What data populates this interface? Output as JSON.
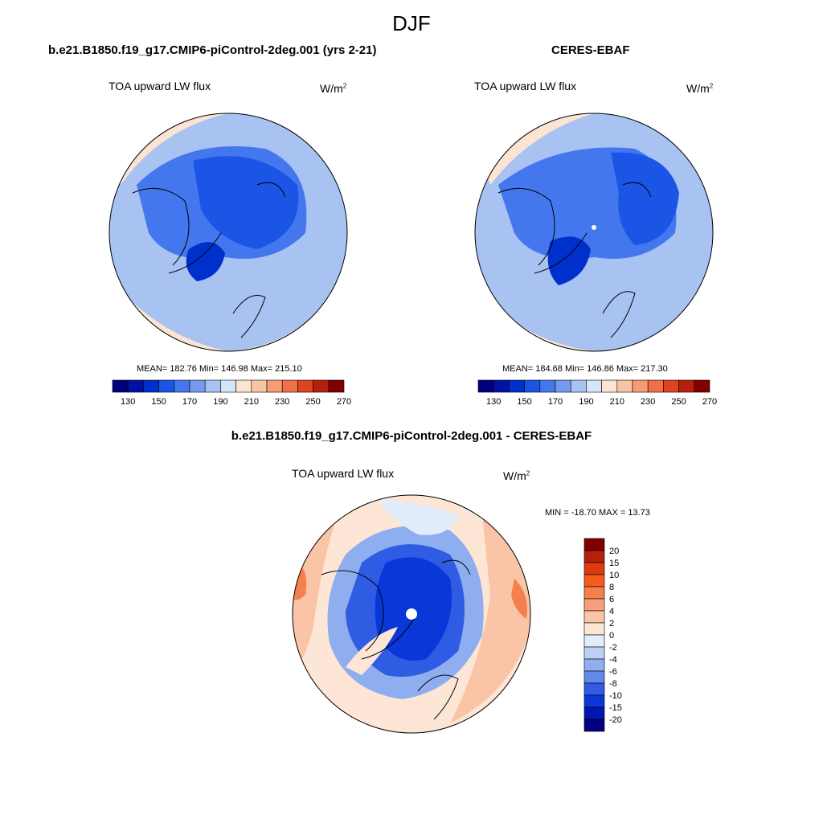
{
  "season": "DJF",
  "panels": {
    "model": {
      "title": "b.e21.B1850.f19_g17.CMIP6-piControl-2deg.001 (yrs 2-21)",
      "variable": "TOA upward LW flux",
      "units_base": "W/m",
      "units_exp": "2",
      "stats": "MEAN= 182.76  Min= 146.98  Max= 215.10"
    },
    "obs": {
      "title": "CERES-EBAF",
      "variable": "TOA upward LW flux",
      "units_base": "W/m",
      "units_exp": "2",
      "stats": "MEAN= 184.68  Min= 146.86  Max= 217.30"
    },
    "diff": {
      "title": "b.e21.B1850.f19_g17.CMIP6-piControl-2deg.001 - CERES-EBAF",
      "variable": "TOA upward LW flux",
      "units_base": "W/m",
      "units_exp": "2",
      "stats": "MIN = -18.70 MAX =  13.73"
    }
  },
  "colorbars": {
    "abs": {
      "colors": [
        "#00007f",
        "#0012a6",
        "#0030cc",
        "#1a55e6",
        "#4477ee",
        "#7599ee",
        "#a8c2f2",
        "#d6e6fa",
        "#fbe4d2",
        "#f9c4a3",
        "#f59c74",
        "#f0704a",
        "#e0441f",
        "#b5200d",
        "#800000"
      ],
      "tick_labels": [
        "130",
        "150",
        "170",
        "190",
        "210",
        "230",
        "250",
        "270"
      ]
    },
    "diff": {
      "colors": [
        "#800000",
        "#b5200d",
        "#dd3a12",
        "#f55a1f",
        "#f57f4d",
        "#f5a07a",
        "#f9c5a6",
        "#fde6d6",
        "#e2edfb",
        "#bcd0f3",
        "#8eaef0",
        "#6188ea",
        "#2f5ce3",
        "#0a37d8",
        "#0016ae",
        "#000080"
      ],
      "tick_labels": [
        "20",
        "15",
        "10",
        "8",
        "6",
        "4",
        "2",
        "0",
        "-2",
        "-4",
        "-6",
        "-8",
        "-10",
        "-15",
        "-20"
      ]
    }
  },
  "map_colors": {
    "abs_low": "#1a55e6",
    "abs_mid": "#4477ee",
    "abs_light": "#a8c2f2",
    "abs_pale": "#d6e6fa",
    "abs_warm": "#fbe4d2",
    "abs_deep": "#0030cc",
    "diff_deep": "#0a37d8",
    "diff_mid": "#2f5ce3",
    "diff_light": "#8eaef0",
    "diff_pale": "#e2edfb",
    "diff_warm1": "#fde6d6",
    "diff_warm2": "#f9c5a6",
    "diff_warm3": "#f57f4d"
  }
}
